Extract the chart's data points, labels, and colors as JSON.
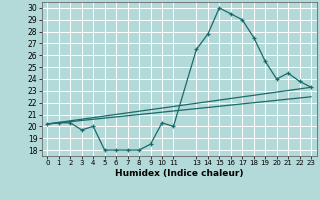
{
  "xlabel": "Humidex (Indice chaleur)",
  "bg_color": "#b3d9d9",
  "grid_color": "#ffffff",
  "line_color": "#1a6b6b",
  "xlim": [
    -0.5,
    23.5
  ],
  "ylim": [
    17.5,
    30.5
  ],
  "yticks": [
    18,
    19,
    20,
    21,
    22,
    23,
    24,
    25,
    26,
    27,
    28,
    29,
    30
  ],
  "xtick_positions": [
    0,
    1,
    2,
    3,
    4,
    5,
    6,
    7,
    8,
    9,
    10,
    11,
    13,
    14,
    15,
    16,
    17,
    18,
    19,
    20,
    21,
    22,
    23
  ],
  "xtick_labels": [
    "0",
    "1",
    "2",
    "3",
    "4",
    "5",
    "6",
    "7",
    "8",
    "9",
    "10",
    "11",
    "13",
    "14",
    "15",
    "16",
    "17",
    "18",
    "19",
    "20",
    "21",
    "22",
    "23"
  ],
  "curve1_x": [
    0,
    1,
    2,
    3,
    4,
    5,
    6,
    7,
    8,
    9,
    10,
    11,
    13,
    14,
    15,
    16,
    17,
    18,
    19,
    20,
    21,
    22,
    23
  ],
  "curve1_y": [
    20.2,
    20.3,
    20.3,
    19.7,
    20.0,
    18.0,
    18.0,
    18.0,
    18.0,
    18.5,
    20.3,
    20.0,
    26.5,
    27.8,
    30.0,
    29.5,
    29.0,
    27.5,
    25.5,
    24.0,
    24.5,
    23.8,
    23.3
  ],
  "curve2_x": [
    0,
    23
  ],
  "curve2_y": [
    20.2,
    23.3
  ],
  "curve3_x": [
    0,
    23
  ],
  "curve3_y": [
    20.2,
    22.5
  ]
}
